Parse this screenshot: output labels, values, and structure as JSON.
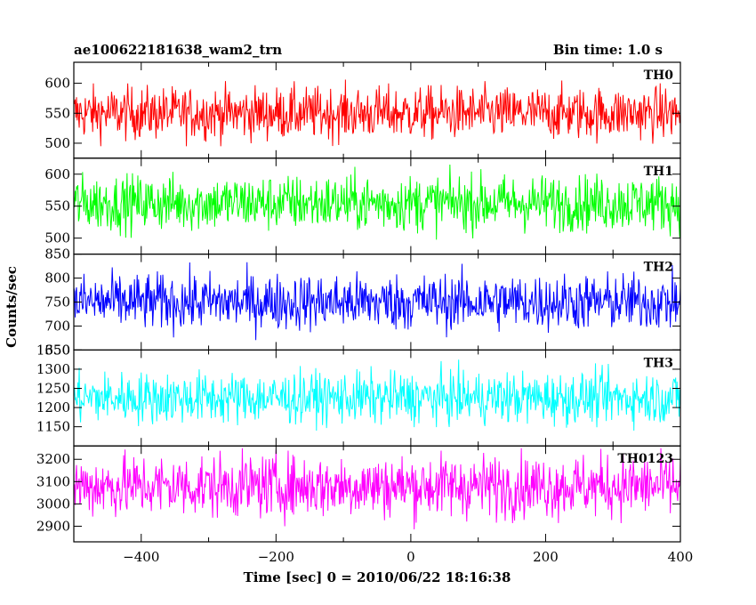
{
  "header": {
    "left_title": "ae100622181638_wam2_trn",
    "right_title": "Bin time: 1.0 s"
  },
  "chart_data": {
    "type": "line",
    "title": "ae100622181638_wam2_trn",
    "subtitle": "Bin time: 1.0 s",
    "xlabel": "Time [sec] 0 = 2010/06/22 18:16:38",
    "ylabel": "Counts/sec",
    "xlim": [
      -500,
      400
    ],
    "x_ticks": [
      -400,
      -200,
      0,
      200,
      400
    ],
    "x_tick_labels": [
      "−400",
      "−200",
      "0",
      "200",
      "400"
    ],
    "bin_time_s": 1.0,
    "grid": false,
    "panels": [
      {
        "name": "TH0",
        "color": "#ff0000",
        "ylim": [
          475,
          635
        ],
        "y_ticks": [
          500,
          550,
          600
        ],
        "mean": 550,
        "noise_range": [
          495,
          625
        ]
      },
      {
        "name": "TH1",
        "color": "#00ff00",
        "ylim": [
          475,
          625
        ],
        "y_ticks": [
          500,
          550,
          600
        ],
        "mean": 555,
        "noise_range": [
          485,
          615
        ]
      },
      {
        "name": "TH2",
        "color": "#0000ff",
        "ylim": [
          650,
          850
        ],
        "y_ticks": [
          650,
          700,
          750,
          800,
          850
        ],
        "y_tick_labels": [
          "650",
          "700",
          "750",
          "800",
          "850"
        ],
        "mean": 750,
        "noise_range": [
          665,
          840
        ]
      },
      {
        "name": "TH3",
        "color": "#00ffff",
        "ylim": [
          1100,
          1350
        ],
        "y_ticks": [
          1150,
          1200,
          1250,
          1300,
          1350
        ],
        "y_tick_labels": [
          "1150",
          "1200",
          "1250",
          "1300",
          "1350"
        ],
        "mean": 1225,
        "noise_range": [
          1140,
          1340
        ]
      },
      {
        "name": "TH0123",
        "color": "#ff00ff",
        "ylim": [
          2830,
          3260
        ],
        "y_ticks": [
          2900,
          3000,
          3100,
          3200
        ],
        "mean": 3080,
        "noise_range": [
          2830,
          3250
        ]
      }
    ]
  }
}
